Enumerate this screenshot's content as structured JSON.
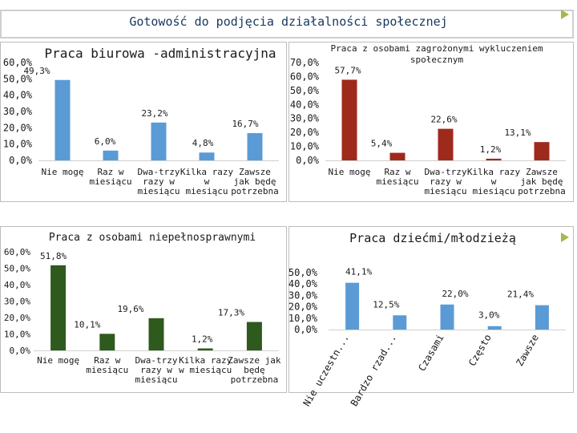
{
  "page": {
    "title": "Gotowość do podjęcia działalności społecznej"
  },
  "colors": {
    "blue": "#5b9bd5",
    "red": "#9e2a1c",
    "green": "#2f5a1e",
    "title": "#17375e",
    "arrow": "#a6b94a"
  },
  "chart_data": [
    {
      "type": "bar",
      "title": "Praca biurowa -administracyjna",
      "color": "blue",
      "categories": [
        [
          "Nie mogę"
        ],
        [
          "Raz w",
          "miesiącu"
        ],
        [
          "Dwa-trzy",
          "razy w",
          "miesiącu"
        ],
        [
          "Kilka razy",
          "w",
          "miesiącu"
        ],
        [
          "Zawsze",
          "jak będę",
          "potrzebna"
        ]
      ],
      "values": [
        49.3,
        6.0,
        23.2,
        4.8,
        16.7
      ],
      "labels": [
        "49,3%",
        "6,0%",
        "23,2%",
        "4,8%",
        "16,7%"
      ],
      "yticks": [
        "0,0%",
        "10,0%",
        "20,0%",
        "30,0%",
        "40,0%",
        "50,0%",
        "60,0%"
      ],
      "ylim": [
        0,
        60
      ]
    },
    {
      "type": "bar",
      "title": "Praca z osobami zagrożonymi wykluczeniem społecznym",
      "color": "red",
      "categories": [
        [
          "Nie mogę"
        ],
        [
          "Raz w",
          "miesiącu"
        ],
        [
          "Dwa-trzy",
          "razy w",
          "miesiącu"
        ],
        [
          "Kilka razy",
          "w",
          "miesiącu"
        ],
        [
          "Zawsze",
          "jak będę",
          "potrzebna"
        ]
      ],
      "values": [
        57.7,
        5.4,
        22.6,
        1.2,
        13.1
      ],
      "labels": [
        "57,7%",
        "5,4%",
        "22,6%",
        "1,2%",
        "13,1%"
      ],
      "yticks": [
        "0,0%",
        "10,0%",
        "20,0%",
        "30,0%",
        "40,0%",
        "50,0%",
        "60,0%",
        "70,0%"
      ],
      "ylim": [
        0,
        70
      ]
    },
    {
      "type": "bar",
      "title": "Praca z osobami niepełnosprawnymi",
      "color": "green",
      "categories": [
        [
          "Nie mogę"
        ],
        [
          "Raz w",
          "miesiącu"
        ],
        [
          "Dwa-trzy",
          "razy w",
          "miesiącu"
        ],
        [
          "Kilka razy",
          "w miesiącu"
        ],
        [
          "Zawsze jak",
          "będę",
          "potrzebna"
        ]
      ],
      "values": [
        51.8,
        10.1,
        19.6,
        1.2,
        17.3
      ],
      "labels": [
        "51,8%",
        "10,1%",
        "19,6%",
        "1,2%",
        "17,3%"
      ],
      "yticks": [
        "0,0%",
        "10,0%",
        "20,0%",
        "30,0%",
        "40,0%",
        "50,0%",
        "60,0%"
      ],
      "ylim": [
        0,
        60
      ]
    },
    {
      "type": "bar",
      "title": "Praca dziećmi/młodzieżą",
      "color": "blue",
      "categories": [
        [
          "Nie uczestn..."
        ],
        [
          "Bardzo rzad..."
        ],
        [
          "Czasami"
        ],
        [
          "Często"
        ],
        [
          "Zawsze"
        ]
      ],
      "values": [
        41.1,
        12.5,
        22.0,
        3.0,
        21.4
      ],
      "labels": [
        "41,1%",
        "12,5%",
        "22,0%",
        "3,0%",
        "21,4%"
      ],
      "yticks": [
        "0,0%",
        "10,0%",
        "20,0%",
        "30,0%",
        "40,0%",
        "50,0%"
      ],
      "ylim": [
        0,
        50
      ]
    }
  ]
}
